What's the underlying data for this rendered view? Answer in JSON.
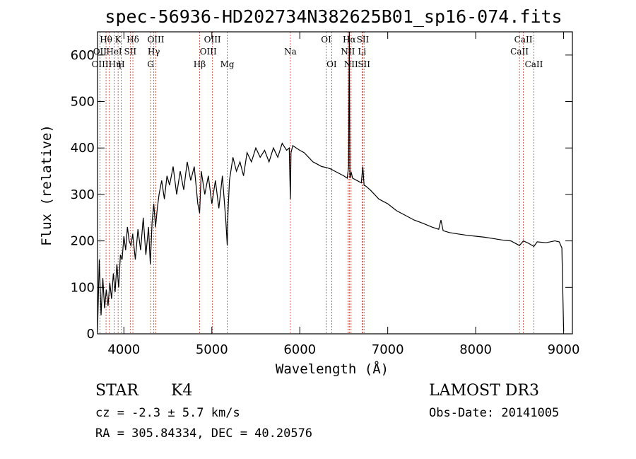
{
  "chart_data": {
    "type": "line",
    "title": "spec-56936-HD202734N382625B01_sp16-074.fits",
    "xlabel": "Wavelength (Å)",
    "ylabel": "Flux (relative)",
    "xlim": [
      3700,
      9100
    ],
    "ylim": [
      0,
      650
    ],
    "xticks": [
      4000,
      5000,
      6000,
      7000,
      8000,
      9000
    ],
    "yticks": [
      0,
      100,
      200,
      300,
      400,
      500,
      600
    ],
    "grid": false,
    "series": [
      {
        "x": [
          3700,
          3720,
          3740,
          3760,
          3780,
          3800,
          3820,
          3840,
          3860,
          3880,
          3900,
          3920,
          3940,
          3960,
          3980,
          4000,
          4020,
          4040,
          4060,
          4080,
          4100,
          4130,
          4160,
          4190,
          4220,
          4250,
          4280,
          4300,
          4320,
          4340,
          4360,
          4380,
          4400,
          4430,
          4460,
          4490,
          4520,
          4560,
          4600,
          4640,
          4680,
          4720,
          4760,
          4800,
          4840,
          4861,
          4880,
          4920,
          4960,
          5000,
          5040,
          5080,
          5120,
          5160,
          5175,
          5183,
          5200,
          5240,
          5280,
          5320,
          5360,
          5400,
          5450,
          5500,
          5550,
          5600,
          5650,
          5700,
          5750,
          5800,
          5850,
          5880,
          5893,
          5900,
          5920,
          5960,
          6000,
          6050,
          6100,
          6150,
          6200,
          6250,
          6300,
          6350,
          6400,
          6450,
          6500,
          6540,
          6555,
          6563,
          6570,
          6585,
          6600,
          6650,
          6700,
          6717,
          6731,
          6750,
          6800,
          6850,
          6900,
          6950,
          7000,
          7100,
          7200,
          7300,
          7400,
          7500,
          7580,
          7605,
          7630,
          7700,
          7800,
          7900,
          8000,
          8100,
          8200,
          8300,
          8400,
          8498,
          8542,
          8600,
          8662,
          8700,
          8800,
          8900,
          8950,
          8980,
          9000
        ],
        "values": [
          5,
          160,
          40,
          120,
          55,
          95,
          60,
          110,
          75,
          130,
          90,
          150,
          100,
          170,
          160,
          210,
          180,
          230,
          200,
          190,
          215,
          160,
          225,
          180,
          250,
          170,
          230,
          150,
          240,
          280,
          230,
          270,
          300,
          330,
          290,
          340,
          320,
          360,
          300,
          350,
          310,
          370,
          330,
          360,
          280,
          260,
          350,
          300,
          340,
          280,
          330,
          270,
          340,
          240,
          190,
          260,
          330,
          380,
          350,
          370,
          340,
          390,
          370,
          400,
          380,
          395,
          370,
          400,
          380,
          410,
          395,
          400,
          290,
          390,
          405,
          400,
          395,
          390,
          380,
          370,
          365,
          360,
          358,
          355,
          350,
          345,
          340,
          335,
          360,
          650,
          335,
          348,
          335,
          330,
          325,
          360,
          320,
          318,
          310,
          300,
          290,
          285,
          280,
          265,
          255,
          245,
          238,
          230,
          225,
          245,
          222,
          218,
          215,
          212,
          210,
          208,
          205,
          202,
          200,
          190,
          200,
          195,
          188,
          198,
          196,
          200,
          198,
          185,
          5
        ]
      }
    ],
    "line_labels": [
      {
        "text": "Hθ",
        "x": 3797,
        "row": 1
      },
      {
        "text": "K",
        "x": 3934,
        "row": 1
      },
      {
        "text": "Hδ",
        "x": 4102,
        "row": 1
      },
      {
        "text": "OII",
        "x": 3727,
        "row": 2
      },
      {
        "text": "HeI",
        "x": 3889,
        "row": 2
      },
      {
        "text": "SII",
        "x": 4072,
        "row": 2
      },
      {
        "text": "OIIIHη",
        "x": 3800,
        "row": 3
      },
      {
        "text": "H",
        "x": 3969,
        "row": 3
      },
      {
        "text": "OIII",
        "x": 4363,
        "row": 1
      },
      {
        "text": "Hγ",
        "x": 4340,
        "row": 2
      },
      {
        "text": "G",
        "x": 4304,
        "row": 3
      },
      {
        "text": "OIII",
        "x": 5007,
        "row": 1
      },
      {
        "text": "OIII",
        "x": 4959,
        "row": 2
      },
      {
        "text": "Hβ",
        "x": 4861,
        "row": 3
      },
      {
        "text": "Mg",
        "x": 5175,
        "row": 3
      },
      {
        "text": "Na",
        "x": 5893,
        "row": 2
      },
      {
        "text": "OI",
        "x": 6300,
        "row": 1
      },
      {
        "text": "OI",
        "x": 6363,
        "row": 3
      },
      {
        "text": "Hα",
        "x": 6563,
        "row": 1
      },
      {
        "text": "SII",
        "x": 6717,
        "row": 1
      },
      {
        "text": "NII",
        "x": 6548,
        "row": 2
      },
      {
        "text": "Li",
        "x": 6708,
        "row": 2
      },
      {
        "text": "NII",
        "x": 6583,
        "row": 3
      },
      {
        "text": "SII",
        "x": 6731,
        "row": 3
      },
      {
        "text": "CaII",
        "x": 8542,
        "row": 1
      },
      {
        "text": "CaII",
        "x": 8498,
        "row": 2
      },
      {
        "text": "CaII",
        "x": 8662,
        "row": 3
      }
    ],
    "marker_lines": [
      3727,
      3797,
      3835,
      3889,
      3934,
      3969,
      4072,
      4102,
      4304,
      4340,
      4363,
      4861,
      5007,
      5175,
      5893,
      6300,
      6363,
      6548,
      6563,
      6583,
      6708,
      6717,
      6731,
      8498,
      8542,
      8662
    ],
    "line_color": "#000000",
    "marker_color": "#c0392b"
  },
  "info": {
    "object_class": "STAR",
    "subclass": "K4",
    "survey": "LAMOST DR3",
    "cz": "cz = -2.3 ± 5.7 km/s",
    "obs_date": "Obs-Date: 20141005",
    "coords": "RA = 305.84334, DEC =  40.20576"
  }
}
